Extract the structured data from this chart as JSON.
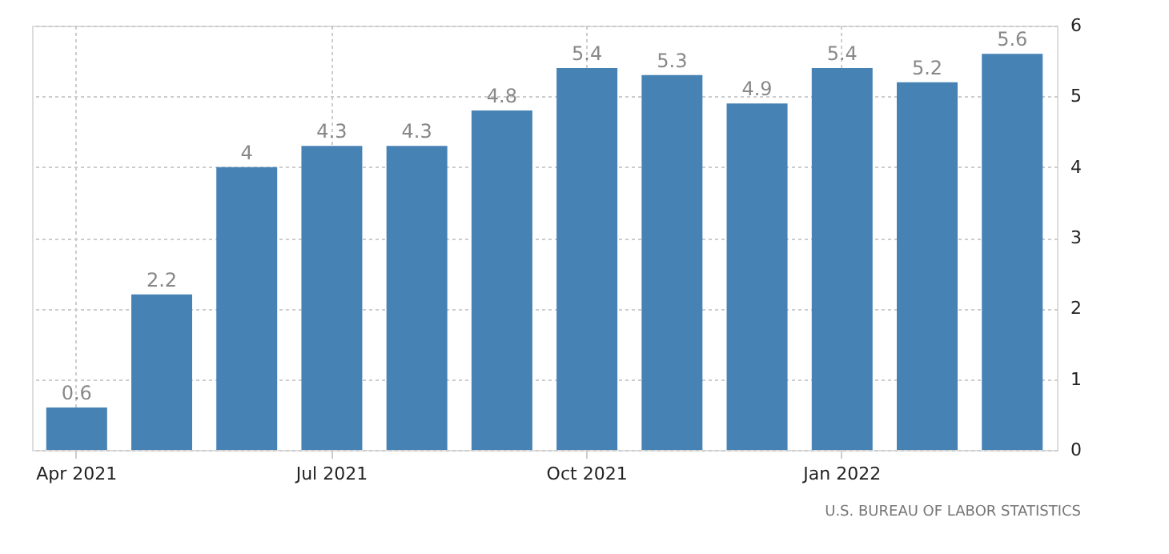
{
  "chart_data": {
    "type": "bar",
    "categories": [
      "Apr 2021",
      null,
      null,
      "Jul 2021",
      null,
      null,
      "Oct 2021",
      null,
      null,
      "Jan 2022",
      null,
      null
    ],
    "values": [
      0.6,
      2.2,
      4,
      4.3,
      4.3,
      4.8,
      5.4,
      5.3,
      4.9,
      5.4,
      5.2,
      5.6
    ],
    "color": "#4682b4",
    "ylim": [
      0,
      6
    ],
    "yticks": [
      0,
      1,
      2,
      3,
      4,
      5,
      6
    ],
    "grid": true,
    "data_labels": true,
    "annotations": [
      "U.S. BUREAU OF LABOR STATISTICS"
    ]
  }
}
